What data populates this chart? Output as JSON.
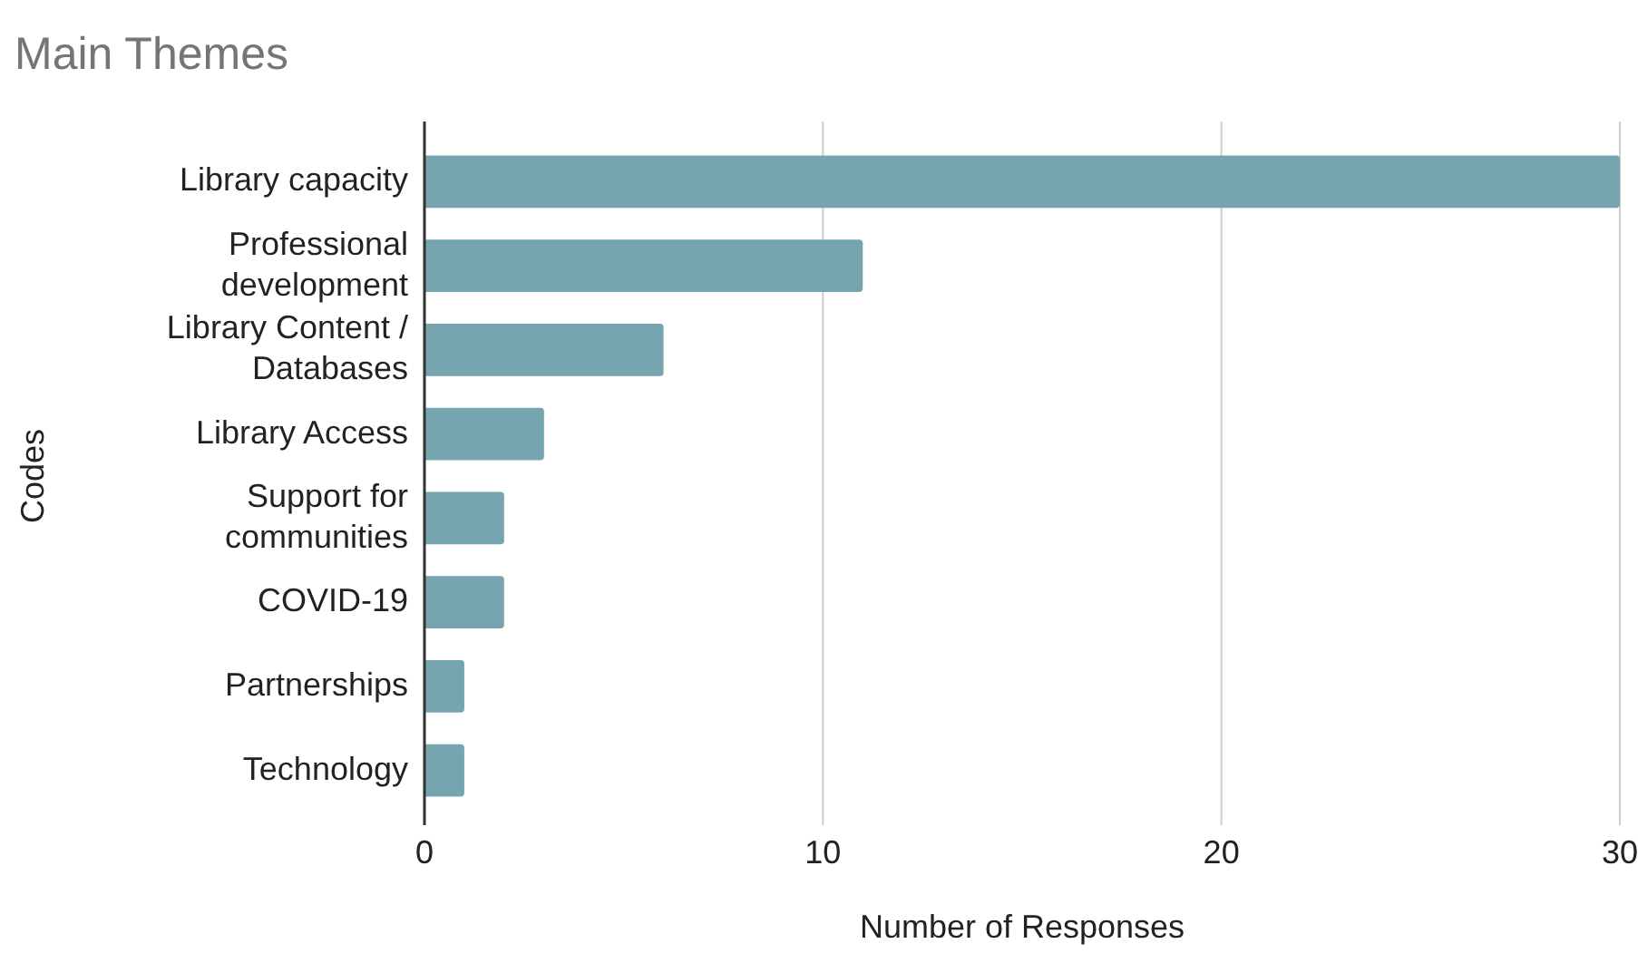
{
  "chart_data": {
    "type": "bar",
    "orientation": "horizontal",
    "title": "Main Themes",
    "xlabel": "Number of Responses",
    "ylabel": "Codes",
    "categories": [
      "Library capacity",
      "Professional development",
      "Library Content / Databases",
      "Library Access",
      "Support for communities",
      "COVID-19",
      "Partnerships",
      "Technology"
    ],
    "values": [
      30,
      11,
      6,
      3,
      2,
      2,
      1,
      1
    ],
    "color": "#76a5af",
    "xlim": [
      0,
      30
    ],
    "xticks": [
      0,
      10,
      20,
      30
    ],
    "grid": "x"
  }
}
